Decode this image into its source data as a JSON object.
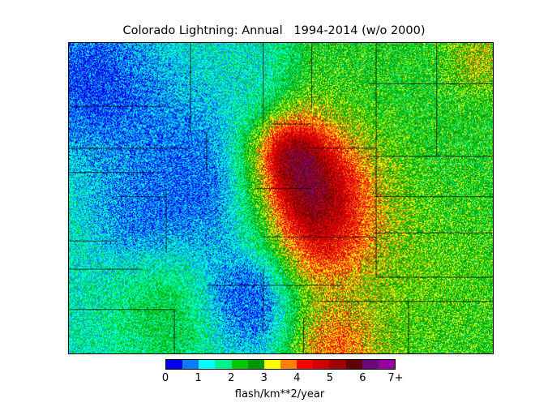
{
  "title": "Colorado Lightning: Annual   1994-2014 (w/o 2000)",
  "colorbar": {
    "label": "flash/km**2/year",
    "ticks": [
      "0",
      "1",
      "2",
      "3",
      "4",
      "5",
      "6",
      "7+"
    ],
    "colors": [
      "#0000ee",
      "#0a7cf5",
      "#00ffff",
      "#00f090",
      "#00c800",
      "#009600",
      "#ffff00",
      "#ff8000",
      "#ff0000",
      "#d20000",
      "#a00000",
      "#640000",
      "#6a0a78",
      "#9600a0"
    ]
  }
}
